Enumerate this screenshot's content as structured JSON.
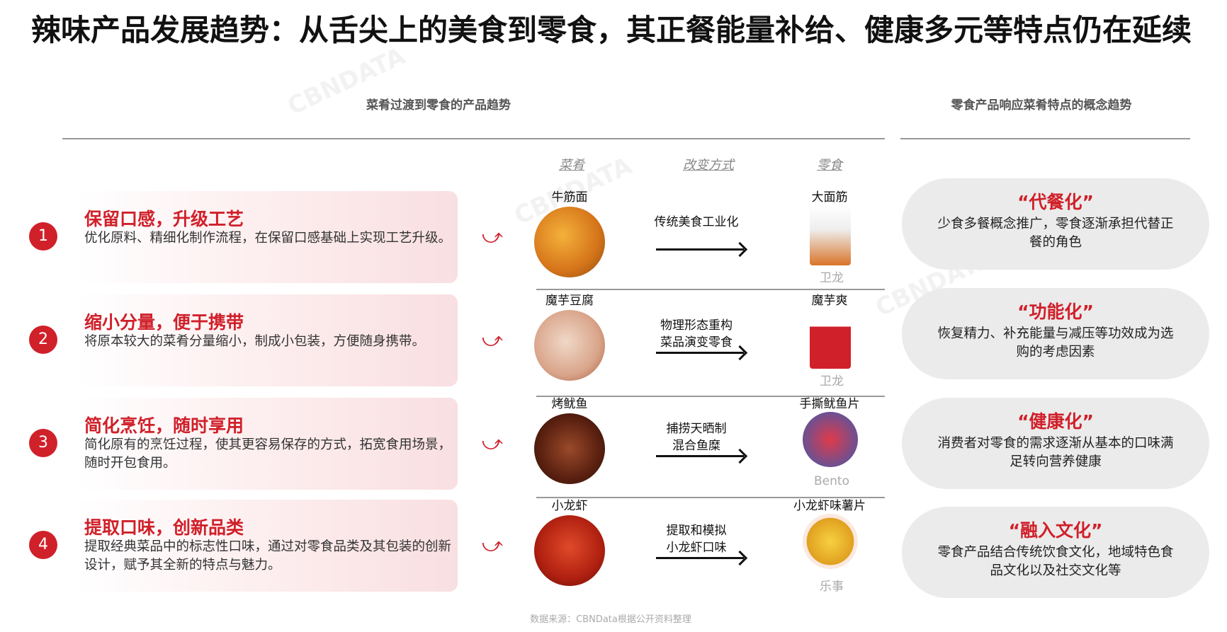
{
  "title": "辣味产品发展趋势：从舌尖上的美食到零食，其正餐能量补给、健康多元等特点仍在延续",
  "left_header": "菜肴过渡到零食的产品趋势",
  "right_header": "零食产品响应菜肴特点的概念趋势",
  "columns": {
    "dish": "菜肴",
    "method": "改变方式",
    "snack": "零食"
  },
  "accent_color": "#d0202a",
  "rows": [
    {
      "num": "1",
      "heading": "保留口感，升级工艺",
      "desc": "优化原料、精细化制作流程，在保留口感基础上实现工艺升级。",
      "dish": "牛筋面",
      "method": [
        "传统美食工业化",
        ""
      ],
      "snack": "大面筋",
      "brand": "卫龙"
    },
    {
      "num": "2",
      "heading": "缩小分量，便于携带",
      "desc": "将原本较大的菜肴分量缩小，制成小包装，方便随身携带。",
      "dish": "魔芋豆腐",
      "method": [
        "物理形态重构",
        "菜品演变零食"
      ],
      "snack": "魔芋爽",
      "brand": "卫龙"
    },
    {
      "num": "3",
      "heading": "简化烹饪，随时享用",
      "desc": "简化原有的烹饪过程，使其更容易保存的方式，拓宽食用场景，随时开包食用。",
      "dish": "烤鱿鱼",
      "method": [
        "捕捞天晒制",
        "混合鱼糜"
      ],
      "snack": "手撕鱿鱼片",
      "brand": "Bento"
    },
    {
      "num": "4",
      "heading": "提取口味，创新品类",
      "desc": "提取经典菜品中的标志性口味，通过对零食品类及其包装的创新设计，赋予其全新的特点与魅力。",
      "dish": "小龙虾",
      "method": [
        "提取和模拟",
        "小龙虾口味"
      ],
      "snack": "小龙虾味薯片",
      "brand": "乐事"
    }
  ],
  "concepts": [
    {
      "heading": "“代餐化”",
      "desc": "少食多餐概念推广，零食逐渐承担代替正餐的角色"
    },
    {
      "heading": "“功能化”",
      "desc": "恢复精力、补充能量与减压等功效成为选购的考虑因素"
    },
    {
      "heading": "“健康化”",
      "desc": "消费者对零食的需求逐渐从基本的口味满足转向营养健康"
    },
    {
      "heading": "“融入文化”",
      "desc": "零食产品结合传统饮食文化，地域特色食品文化以及社交文化等"
    }
  ],
  "source": "数据来源：CBNData根据公开资料整理",
  "watermark": "CBNDATA"
}
